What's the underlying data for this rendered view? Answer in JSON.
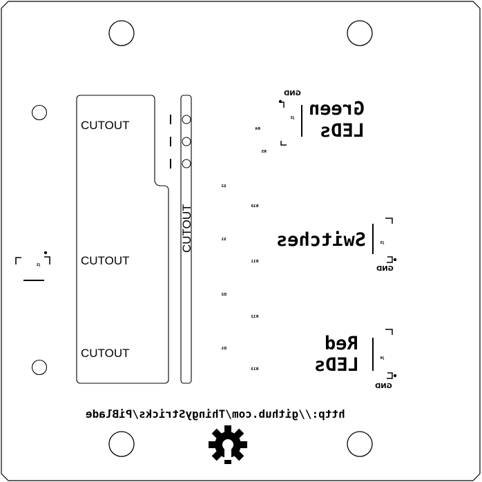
{
  "board": {
    "cutouts": [
      "CUTOUT",
      "CUTOUT",
      "CUTOUT",
      "CUTOUT"
    ],
    "sections": {
      "green": {
        "line1": "Green",
        "line2": "LEDs",
        "gnd": "GND",
        "ref": "J2",
        "res1": "R4",
        "res2": "R5"
      },
      "switches": {
        "line1": "Switches",
        "gnd": "GND",
        "ref": "J3",
        "res1": "S2",
        "res2": "R10",
        "res3": "S1",
        "res4": "R11"
      },
      "red": {
        "line1": "Red",
        "line2": "LEDs",
        "gnd": "GND",
        "ref": "J4",
        "res1": "D2",
        "res2": "R12",
        "res3": "D1",
        "res4": "R13"
      },
      "left": {
        "ref": "J1"
      }
    },
    "url": "http://github.com/ThingyStricks/PiBlade",
    "logo": "gear-icon"
  }
}
